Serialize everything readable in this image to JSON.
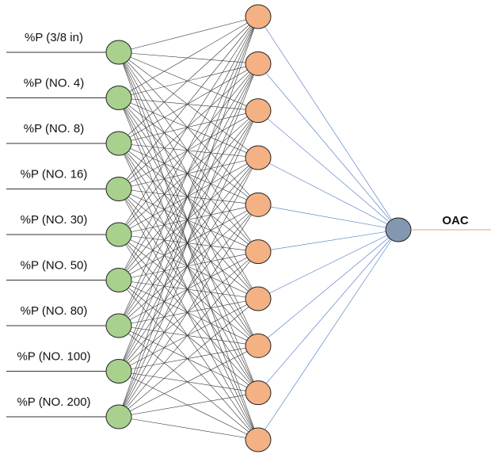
{
  "inputs": [
    {
      "label": "%P (3/8 in)"
    },
    {
      "label": "%P (NO. 4)"
    },
    {
      "label": "%P (NO. 8)"
    },
    {
      "label": "%P (NO. 16)"
    },
    {
      "label": "%P (NO. 30)"
    },
    {
      "label": "%P (NO. 50)"
    },
    {
      "label": "%P (NO. 80)"
    },
    {
      "label": "%P (NO. 100)"
    },
    {
      "label": "%P (NO. 200)"
    }
  ],
  "output": {
    "label": "OAC"
  }
}
